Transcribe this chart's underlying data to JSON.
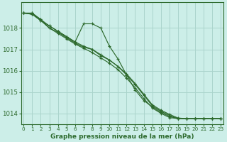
{
  "background_color": "#cceee8",
  "grid_color": "#aad4cc",
  "line_color": "#2d6a2d",
  "title": "Graphe pression niveau de la mer (hPa)",
  "yticks": [
    1014,
    1015,
    1016,
    1017,
    1018
  ],
  "xticks": [
    0,
    1,
    2,
    3,
    4,
    5,
    6,
    7,
    8,
    9,
    10,
    11,
    12,
    13,
    14,
    15,
    16,
    17,
    18,
    19,
    20,
    21,
    22,
    23
  ],
  "ylim": [
    1013.5,
    1019.2
  ],
  "xlim": [
    -0.3,
    23.3
  ],
  "series": [
    [
      1018.7,
      1018.7,
      1018.4,
      1018.1,
      1017.85,
      1017.6,
      1017.35,
      1018.2,
      1018.2,
      1018.0,
      1017.15,
      1016.55,
      1015.8,
      1015.1,
      1014.6,
      1014.3,
      1014.05,
      1013.85,
      1013.75,
      1013.75,
      1013.75,
      1013.75,
      1013.75,
      1013.75
    ],
    [
      1018.7,
      1018.7,
      1018.4,
      1018.0,
      1017.8,
      1017.55,
      1017.3,
      1017.1,
      1017.0,
      1016.7,
      1016.5,
      1016.2,
      1015.8,
      1015.35,
      1014.85,
      1014.35,
      1014.1,
      1013.9,
      1013.75,
      1013.75,
      1013.75,
      1013.75,
      1013.75,
      1013.75
    ],
    [
      1018.7,
      1018.65,
      1018.35,
      1018.1,
      1017.85,
      1017.6,
      1017.35,
      1017.15,
      1017.0,
      1016.75,
      1016.5,
      1016.2,
      1015.85,
      1015.4,
      1014.9,
      1014.4,
      1014.15,
      1013.95,
      1013.78,
      1013.75,
      1013.75,
      1013.75,
      1013.75,
      1013.75
    ],
    [
      1018.7,
      1018.65,
      1018.35,
      1018.0,
      1017.75,
      1017.5,
      1017.25,
      1017.05,
      1016.85,
      1016.6,
      1016.35,
      1016.05,
      1015.65,
      1015.2,
      1014.7,
      1014.25,
      1014.0,
      1013.8,
      1013.75,
      1013.75,
      1013.75,
      1013.75,
      1013.75,
      1013.75
    ]
  ]
}
